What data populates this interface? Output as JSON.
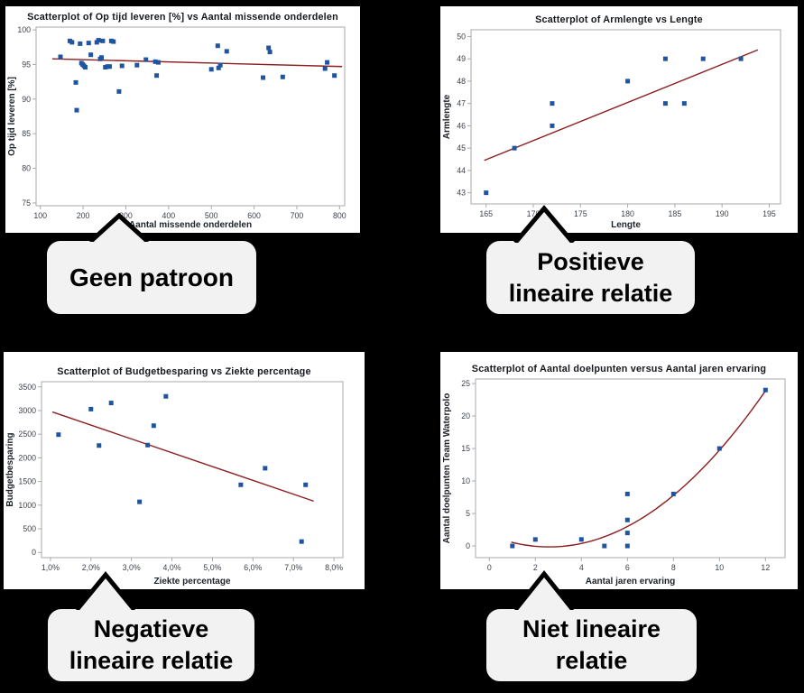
{
  "colors": {
    "background": "#000000",
    "panel": "#ffffff",
    "frame": "#a9a9a9",
    "marker": "#1f55a0",
    "trend": "#8b1e1e",
    "tick_text": "#3c434c",
    "callout_fill": "#f2f2f2",
    "callout_border": "#000000"
  },
  "chart_data": [
    {
      "id": "op_tijd",
      "type": "scatter",
      "title": "Scatterplot of Op tijd leveren [%] vs Aantal missende onderdelen",
      "xlabel": "Aantal missende onderdelen",
      "ylabel": "Op tijd leveren [%]",
      "xlim": [
        90,
        812
      ],
      "ylim": [
        74.6,
        100.4
      ],
      "xticks": [
        100,
        200,
        300,
        400,
        500,
        600,
        700,
        800
      ],
      "yticks": [
        75,
        80,
        85,
        90,
        95,
        100
      ],
      "grid": false,
      "legend": null,
      "points": [
        [
          147,
          96.1
        ],
        [
          169,
          98.4
        ],
        [
          174,
          98.2
        ],
        [
          183,
          92.4
        ],
        [
          185,
          88.4
        ],
        [
          193,
          98.0
        ],
        [
          196,
          95.2
        ],
        [
          199,
          95.0
        ],
        [
          202,
          94.8
        ],
        [
          205,
          94.6
        ],
        [
          213,
          98.1
        ],
        [
          218,
          96.4
        ],
        [
          232,
          98.2
        ],
        [
          236,
          98.5
        ],
        [
          240,
          95.8
        ],
        [
          243,
          96.0
        ],
        [
          246,
          98.4
        ],
        [
          252,
          94.6
        ],
        [
          257,
          94.7
        ],
        [
          262,
          94.7
        ],
        [
          266,
          98.4
        ],
        [
          271,
          98.3
        ],
        [
          284,
          91.1
        ],
        [
          291,
          94.8
        ],
        [
          326,
          94.9
        ],
        [
          347,
          95.7
        ],
        [
          369,
          95.4
        ],
        [
          372,
          93.4
        ],
        [
          376,
          95.3
        ],
        [
          500,
          94.3
        ],
        [
          515,
          97.7
        ],
        [
          517,
          94.5
        ],
        [
          521,
          94.9
        ],
        [
          536,
          96.9
        ],
        [
          621,
          93.1
        ],
        [
          634,
          97.4
        ],
        [
          637,
          96.8
        ],
        [
          667,
          93.2
        ],
        [
          766,
          94.4
        ],
        [
          771,
          95.3
        ],
        [
          788,
          93.4
        ]
      ],
      "trend": {
        "type": "linear",
        "x1": 128,
        "y1": 95.82,
        "x2": 806,
        "y2": 94.7
      }
    },
    {
      "id": "armlengte",
      "type": "scatter",
      "title": "Scatterplot of Armlengte vs Lengte",
      "xlabel": "Lengte",
      "ylabel": "Armlengte",
      "xlim": [
        163.4,
        196.2
      ],
      "ylim": [
        42.5,
        50.3
      ],
      "xticks": [
        165,
        170,
        175,
        180,
        185,
        190,
        195
      ],
      "yticks": [
        43,
        44,
        45,
        46,
        47,
        48,
        49,
        50
      ],
      "grid": false,
      "legend": null,
      "points": [
        [
          165,
          43
        ],
        [
          168,
          45
        ],
        [
          172,
          46
        ],
        [
          172,
          47
        ],
        [
          180,
          48
        ],
        [
          184,
          47
        ],
        [
          184,
          49
        ],
        [
          186,
          47
        ],
        [
          188,
          49
        ],
        [
          192,
          49
        ]
      ],
      "trend": {
        "type": "linear",
        "x1": 164.8,
        "y1": 44.45,
        "x2": 193.8,
        "y2": 49.4
      }
    },
    {
      "id": "budget",
      "type": "scatter",
      "title": "Scatterplot of Budgetbesparing vs Ziekte percentage",
      "xlabel": "Ziekte percentage",
      "ylabel": "Budgetbesparing",
      "xlim": [
        0.78,
        8.22
      ],
      "ylim": [
        -110,
        3610
      ],
      "xticks": [
        1,
        2,
        3,
        4,
        5,
        6,
        7,
        8
      ],
      "xtick_labels": [
        "1,0%",
        "2,0%",
        "3,0%",
        "4,0%",
        "5,0%",
        "6,0%",
        "7,0%",
        "8,0%"
      ],
      "yticks": [
        0,
        500,
        1000,
        1500,
        2000,
        2500,
        3000,
        3500
      ],
      "grid": false,
      "legend": null,
      "points": [
        [
          1.2,
          2490
        ],
        [
          2.0,
          3030
        ],
        [
          2.2,
          2260
        ],
        [
          2.5,
          3160
        ],
        [
          3.2,
          1070
        ],
        [
          3.4,
          2270
        ],
        [
          3.55,
          2680
        ],
        [
          3.85,
          3300
        ],
        [
          5.7,
          1430
        ],
        [
          6.3,
          1780
        ],
        [
          7.2,
          230
        ],
        [
          7.3,
          1430
        ]
      ],
      "trend": {
        "type": "linear",
        "x1": 1.05,
        "y1": 2970,
        "x2": 7.5,
        "y2": 1085
      }
    },
    {
      "id": "doelpunten",
      "type": "scatter",
      "title": "Scatterplot of Aantal doelpunten versus Aantal jaren ervaring",
      "xlabel": "Aantal jaren ervaring",
      "ylabel": "Aantal doelpunten Team Waterpolo",
      "xlim": [
        -0.6,
        12.85
      ],
      "ylim": [
        -1.8,
        25.7
      ],
      "xticks": [
        0,
        2,
        4,
        6,
        8,
        10,
        12
      ],
      "yticks": [
        0,
        5,
        10,
        15,
        20,
        25
      ],
      "grid": false,
      "legend": null,
      "points": [
        [
          1,
          0
        ],
        [
          2,
          1
        ],
        [
          4,
          1
        ],
        [
          5,
          0
        ],
        [
          6,
          0
        ],
        [
          6,
          2
        ],
        [
          6,
          4
        ],
        [
          6,
          8
        ],
        [
          8,
          8
        ],
        [
          10,
          15
        ],
        [
          12,
          24
        ]
      ],
      "trend": {
        "type": "quad",
        "a": 0.272,
        "h": 2.6,
        "k": -0.15,
        "x1": 0.95,
        "x2": 12.15
      }
    }
  ],
  "callouts": [
    {
      "id": "geen-patroon",
      "line1": "Geen patroon",
      "line2": ""
    },
    {
      "id": "positieve-lineaire-relatie",
      "line1": "Positieve",
      "line2": "lineaire relatie"
    },
    {
      "id": "negatieve-lineaire-relatie",
      "line1": "Negatieve",
      "line2": "lineaire relatie"
    },
    {
      "id": "niet-lineaire-relatie",
      "line1": "Niet lineaire",
      "line2": "relatie"
    }
  ]
}
